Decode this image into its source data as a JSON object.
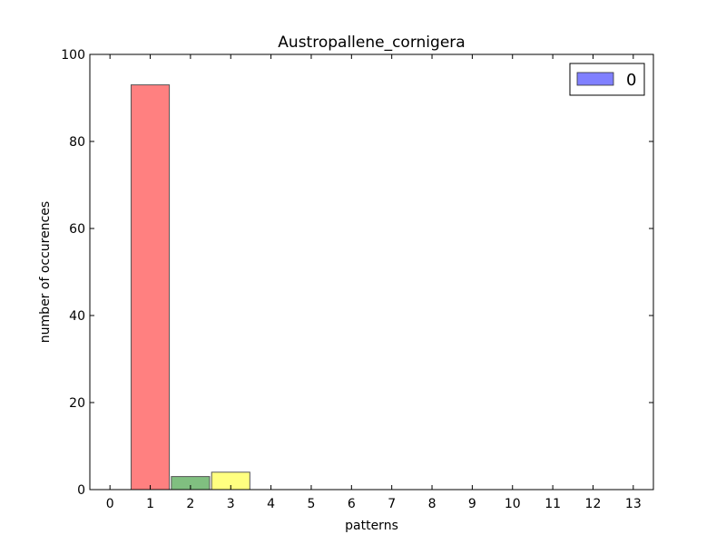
{
  "chart_data": {
    "type": "bar",
    "title": "Austropallene_cornigera",
    "xlabel": "patterns",
    "ylabel": "number of occurences",
    "categories": [
      "0",
      "1",
      "2",
      "3",
      "4",
      "5",
      "6",
      "7",
      "8",
      "9",
      "10",
      "11",
      "12",
      "13"
    ],
    "values": [
      0,
      93,
      3,
      4,
      0,
      0,
      0,
      0,
      0,
      0,
      0,
      0,
      0,
      0
    ],
    "bar_colors": [
      "#ff8080",
      "#ff8080",
      "#80bf80",
      "#ffff80",
      "#ff8080",
      "#ff8080",
      "#ff8080",
      "#ff8080",
      "#ff8080",
      "#ff8080",
      "#ff8080",
      "#ff8080",
      "#ff8080",
      "#ff8080"
    ],
    "ylim": [
      0,
      100
    ],
    "yticks": [
      0,
      20,
      40,
      60,
      80,
      100
    ],
    "grid": false,
    "legend": {
      "placement": "top-right",
      "entries": [
        {
          "label": "0",
          "color": "#8080ff"
        }
      ]
    }
  }
}
